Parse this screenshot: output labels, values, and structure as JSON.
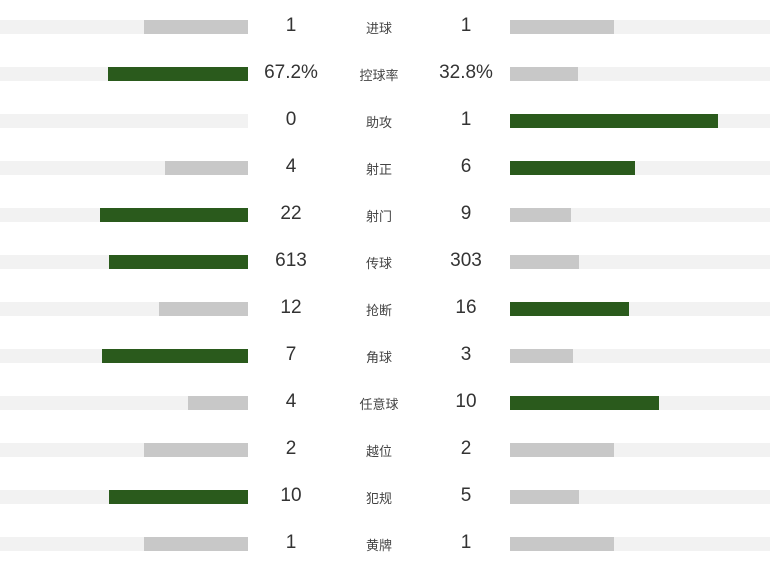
{
  "colors": {
    "leader": "#2a5a1c",
    "other": "#c8c8c8",
    "track": "#f2f2f2"
  },
  "stats": [
    {
      "label": "进球",
      "home": "1",
      "away": "1",
      "home_fill": 0.42,
      "away_fill": 0.4,
      "leader": "none"
    },
    {
      "label": "控球率",
      "home": "67.2%",
      "away": "32.8%",
      "home_fill": 0.565,
      "away_fill": 0.262,
      "leader": "home"
    },
    {
      "label": "助攻",
      "home": "0",
      "away": "1",
      "home_fill": 0,
      "away_fill": 0.8,
      "leader": "away"
    },
    {
      "label": "射正",
      "home": "4",
      "away": "6",
      "home_fill": 0.335,
      "away_fill": 0.481,
      "leader": "away"
    },
    {
      "label": "射门",
      "home": "22",
      "away": "9",
      "home_fill": 0.597,
      "away_fill": 0.235,
      "leader": "home"
    },
    {
      "label": "传球",
      "home": "613",
      "away": "303",
      "home_fill": 0.56,
      "away_fill": 0.265,
      "leader": "home"
    },
    {
      "label": "抢断",
      "home": "12",
      "away": "16",
      "home_fill": 0.359,
      "away_fill": 0.458,
      "leader": "away"
    },
    {
      "label": "角球",
      "home": "7",
      "away": "3",
      "home_fill": 0.589,
      "away_fill": 0.242,
      "leader": "home"
    },
    {
      "label": "任意球",
      "home": "4",
      "away": "10",
      "home_fill": 0.242,
      "away_fill": 0.573,
      "leader": "away"
    },
    {
      "label": "越位",
      "home": "2",
      "away": "2",
      "home_fill": 0.42,
      "away_fill": 0.4,
      "leader": "none"
    },
    {
      "label": "犯规",
      "home": "10",
      "away": "5",
      "home_fill": 0.56,
      "away_fill": 0.265,
      "leader": "home"
    },
    {
      "label": "黄牌",
      "home": "1",
      "away": "1",
      "home_fill": 0.42,
      "away_fill": 0.4,
      "leader": "none"
    }
  ]
}
